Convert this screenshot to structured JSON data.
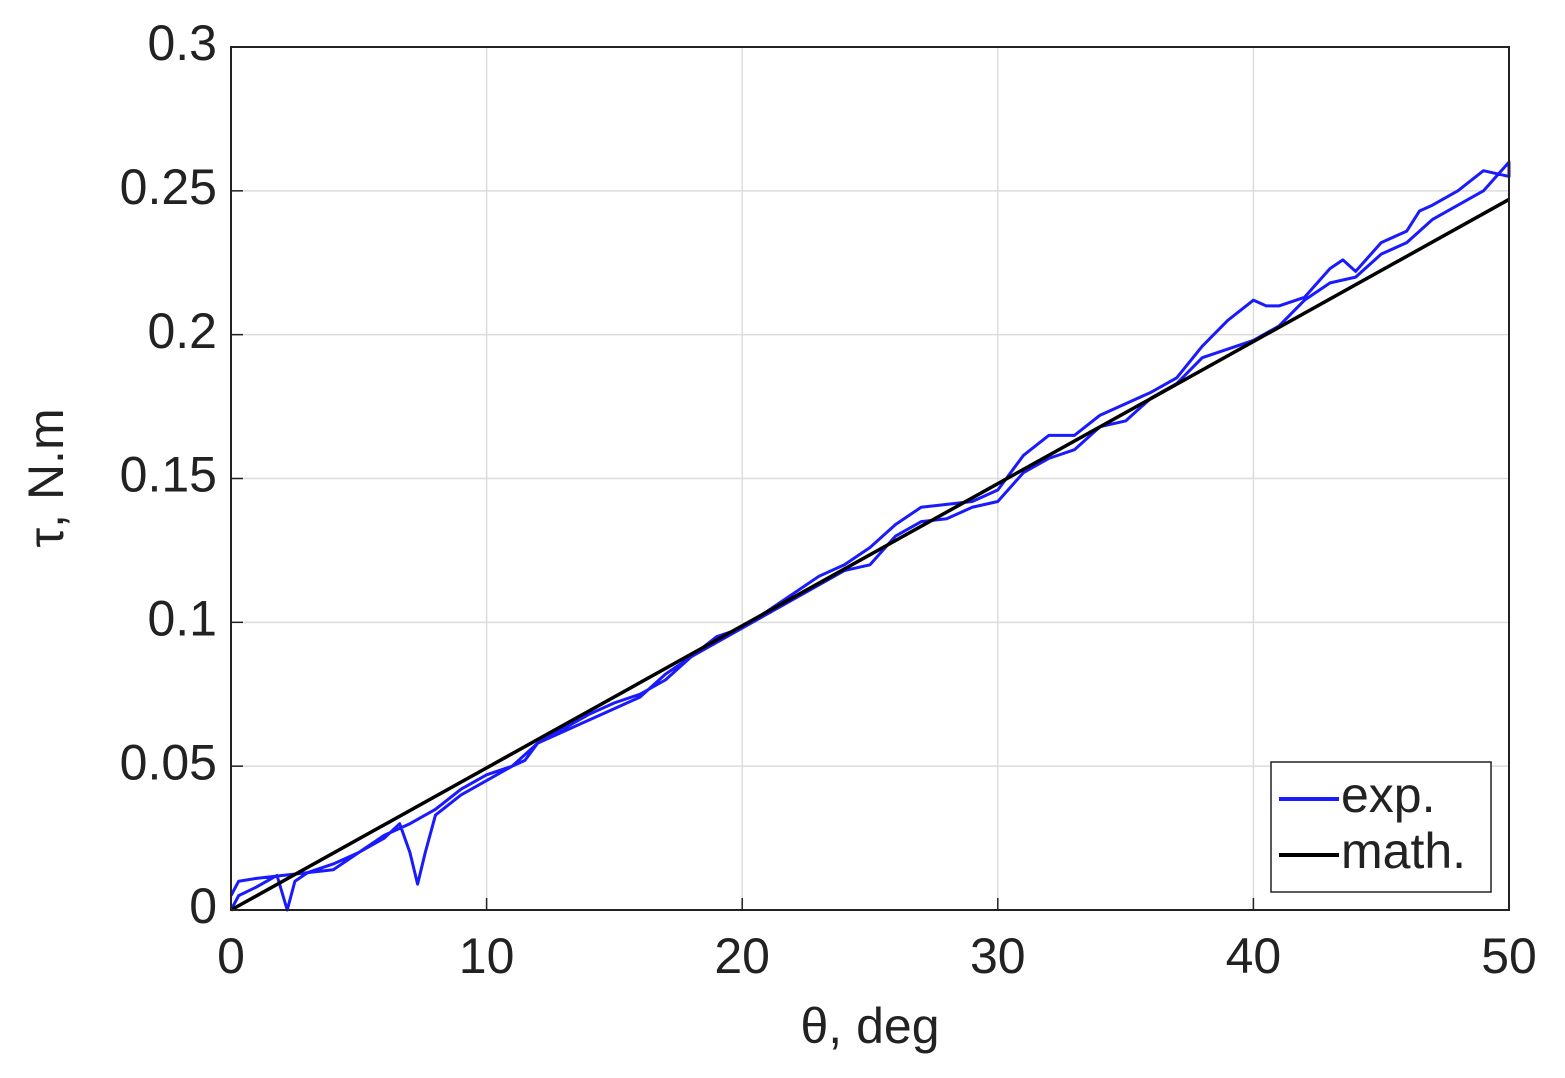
{
  "chart_data": {
    "type": "line",
    "xlabel": "θ, deg",
    "ylabel": "τ, N.m",
    "xlim": [
      0,
      50
    ],
    "ylim": [
      0,
      0.3
    ],
    "xticks": [
      0,
      10,
      20,
      30,
      40,
      50
    ],
    "yticks": [
      0,
      0.05,
      0.1,
      0.15,
      0.2,
      0.25,
      0.3
    ],
    "grid": true,
    "legend": "lower right",
    "series": [
      {
        "name": "exp.",
        "color": "#1a1aff",
        "x": [
          0,
          0.3,
          1,
          1.8,
          2.2,
          2.5,
          3,
          4,
          5,
          6,
          6.6,
          7,
          7.3,
          7.6,
          8,
          9,
          10,
          11,
          11.5,
          12,
          13,
          14,
          15,
          16,
          17,
          18,
          19,
          20,
          21,
          22,
          23,
          24,
          25,
          26,
          27,
          28,
          29,
          30,
          31,
          32,
          33,
          34,
          35,
          36,
          37,
          38,
          39,
          40,
          41,
          42,
          43,
          44,
          45,
          46,
          47,
          48,
          49,
          50,
          50,
          49,
          48,
          47,
          46.5,
          46,
          45,
          44,
          43.5,
          43,
          42,
          41,
          40.5,
          40,
          39,
          38,
          37,
          36,
          35,
          34,
          33,
          32,
          31,
          30,
          29,
          28,
          27,
          26,
          25,
          24,
          23,
          22,
          21,
          20,
          19,
          18,
          17,
          16,
          15,
          14,
          13,
          12,
          11,
          10,
          9,
          8,
          7,
          6,
          5,
          4,
          3,
          2,
          1,
          0.3,
          0
        ],
        "values": [
          0,
          0.005,
          0.008,
          0.012,
          0.0,
          0.01,
          0.013,
          0.014,
          0.02,
          0.025,
          0.03,
          0.02,
          0.009,
          0.02,
          0.033,
          0.04,
          0.045,
          0.05,
          0.052,
          0.058,
          0.062,
          0.066,
          0.07,
          0.074,
          0.082,
          0.088,
          0.093,
          0.098,
          0.103,
          0.108,
          0.113,
          0.118,
          0.12,
          0.13,
          0.135,
          0.136,
          0.14,
          0.142,
          0.152,
          0.157,
          0.16,
          0.168,
          0.17,
          0.178,
          0.183,
          0.192,
          0.195,
          0.198,
          0.203,
          0.212,
          0.218,
          0.22,
          0.228,
          0.232,
          0.24,
          0.245,
          0.25,
          0.26,
          0.255,
          0.257,
          0.25,
          0.245,
          0.243,
          0.236,
          0.232,
          0.222,
          0.226,
          0.223,
          0.213,
          0.21,
          0.21,
          0.212,
          0.205,
          0.196,
          0.185,
          0.18,
          0.176,
          0.172,
          0.165,
          0.165,
          0.158,
          0.146,
          0.142,
          0.141,
          0.14,
          0.134,
          0.126,
          0.12,
          0.116,
          0.11,
          0.104,
          0.098,
          0.095,
          0.088,
          0.08,
          0.075,
          0.072,
          0.068,
          0.063,
          0.058,
          0.05,
          0.047,
          0.042,
          0.035,
          0.03,
          0.026,
          0.02,
          0.016,
          0.013,
          0.012,
          0.011,
          0.01,
          0.005
        ]
      },
      {
        "name": "math.",
        "color": "#000000",
        "x": [
          0,
          50
        ],
        "values": [
          0,
          0.247
        ]
      }
    ]
  }
}
